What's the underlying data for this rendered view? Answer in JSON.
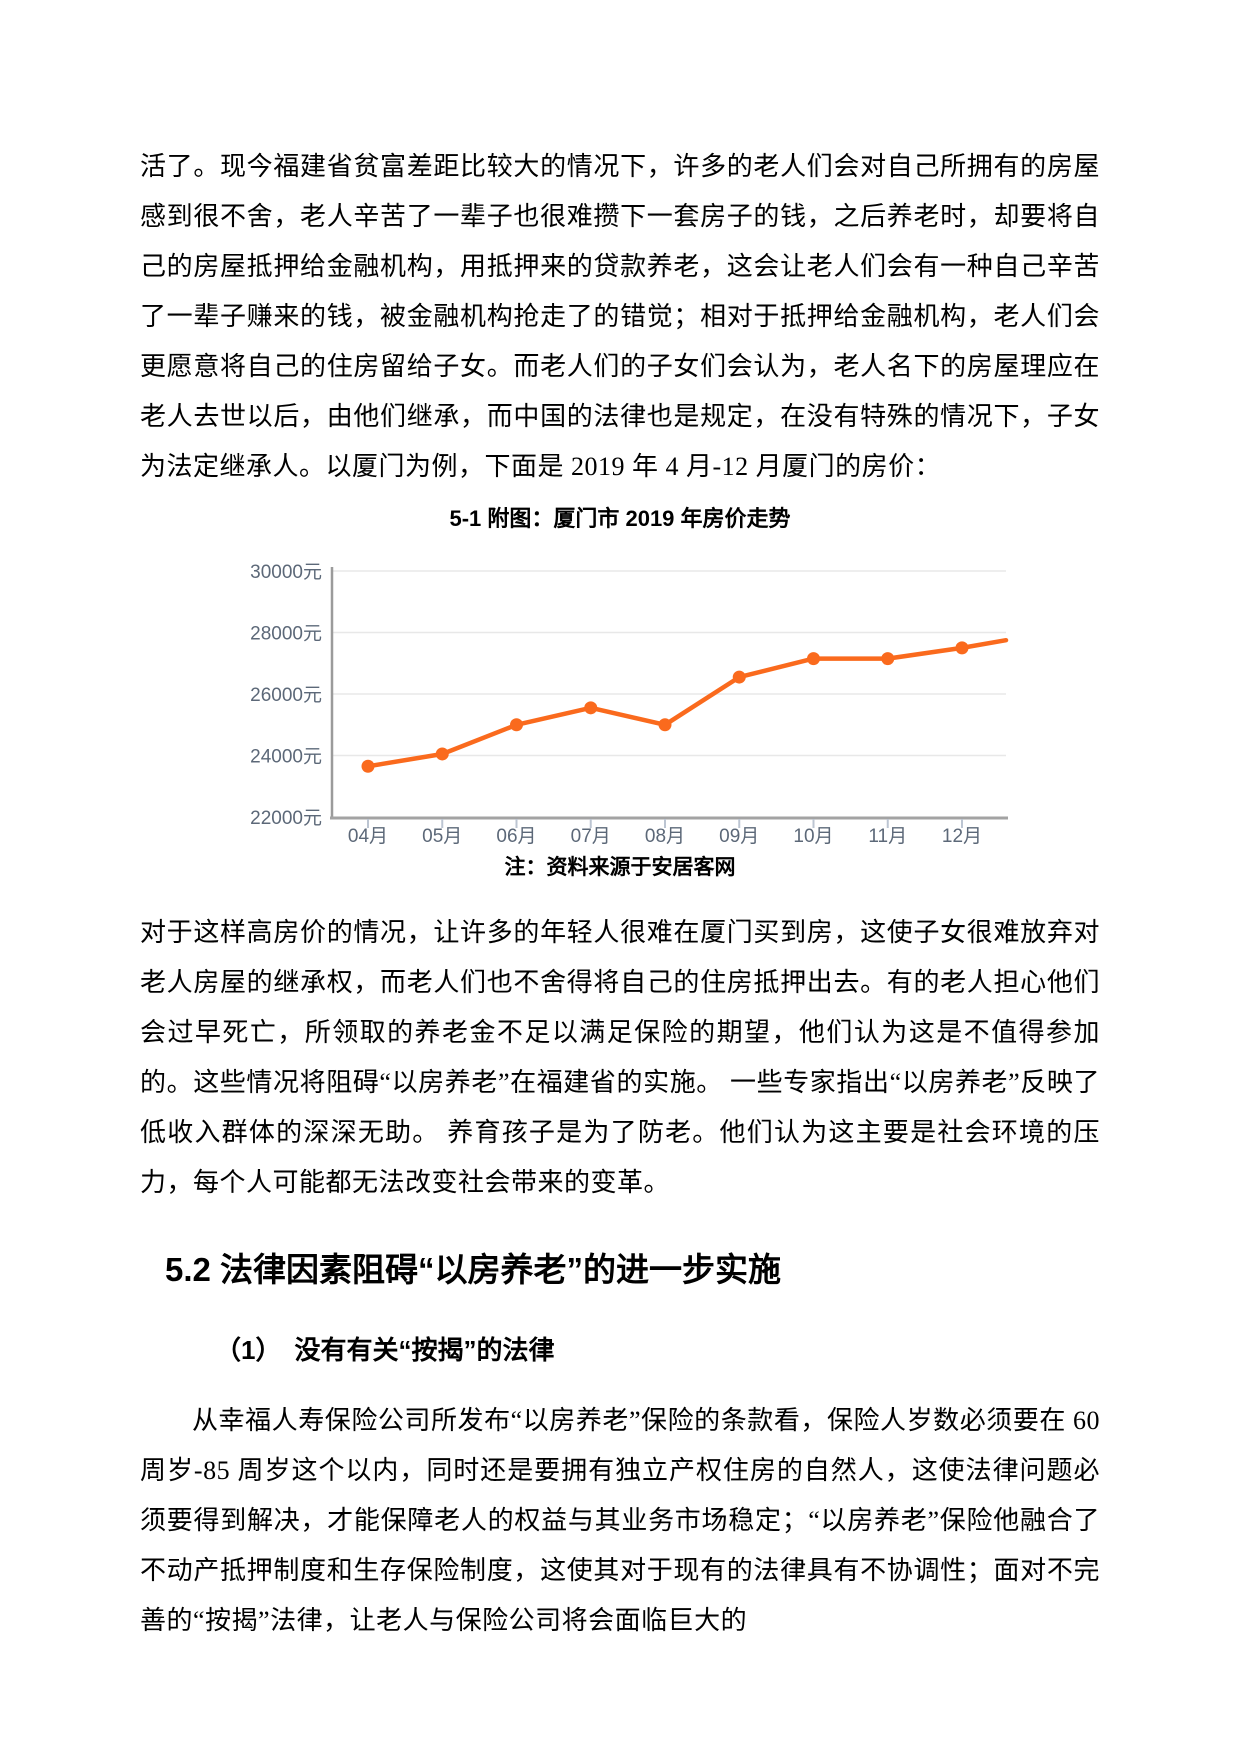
{
  "document": {
    "paragraph1": "活了。现今福建省贫富差距比较大的情况下，许多的老人们会对自己所拥有的房屋感到很不舍，老人辛苦了一辈子也很难攒下一套房子的钱，之后养老时，却要将自己的房屋抵押给金融机构，用抵押来的贷款养老，这会让老人们会有一种自己辛苦了一辈子赚来的钱，被金融机构抢走了的错觉；相对于抵押给金融机构，老人们会更愿意将自己的住房留给子女。而老人们的子女们会认为，老人名下的房屋理应在老人去世以后，由他们继承，而中国的法律也是规定，在没有特殊的情况下，子女为法定继承人。以厦门为例，下面是 2019 年 4 月-12 月厦门的房价：",
    "figure_title": "5-1 附图：厦门市 2019 年房价走势",
    "figure_note": "注：资料来源于安居客网",
    "paragraph2": "对于这样高房价的情况，让许多的年轻人很难在厦门买到房，这使子女很难放弃对老人房屋的继承权，而老人们也不舍得将自己的住房抵押出去。有的老人担心他们会过早死亡，所领取的养老金不足以满足保险的期望，他们认为这是不值得参加的。这些情况将阻碍“以房养老”在福建省的实施。 一些专家指出“以房养老”反映了低收入群体的深深无助。 养育孩子是为了防老。他们认为这主要是社会环境的压力，每个人可能都无法改变社会带来的变革。",
    "section_heading": "5.2 法律因素阻碍“以房养老”的进一步实施",
    "subsection_heading": "（1）　没有有关“按揭”的法律",
    "paragraph3": "从幸福人寿保险公司所发布“以房养老”保险的条款看，保险人岁数必须要在 60 周岁-85 周岁这个以内，同时还是要拥有独立产权住房的自然人，这使法律问题必须要得到解决，才能保障老人的权益与其业务市场稳定；“以房养老”保险他融合了不动产抵押制度和生存保险制度，这使其对于现有的法律具有不协调性；面对不完善的“按揭”法律，让老人与保险公司将会面临巨大的"
  },
  "chart_data": {
    "type": "line",
    "title": "5-1 附图：厦门市 2019 年房价走势",
    "source_note": "注：资料来源于安居客网",
    "categories": [
      "04月",
      "05月",
      "06月",
      "07月",
      "08月",
      "09月",
      "10月",
      "11月",
      "12月"
    ],
    "values": [
      23650,
      24050,
      25000,
      25550,
      25000,
      26550,
      27150,
      27150,
      27500
    ],
    "trailing_edge_value": 27750,
    "y_tick_labels": [
      "30000元",
      "28000元",
      "26000元",
      "24000元",
      "22000元"
    ],
    "ylim": [
      22000,
      30000
    ],
    "xlabel": "",
    "ylabel": "",
    "grid": true,
    "legend": false,
    "line_color": "#fa6a1d",
    "marker_color": "#fa6a1d",
    "axis_label_color": "#5c6878",
    "grid_color": "#e8e8e8",
    "axis_line_color": "#a3a3a3",
    "tick_color": "#bcc5d2"
  }
}
